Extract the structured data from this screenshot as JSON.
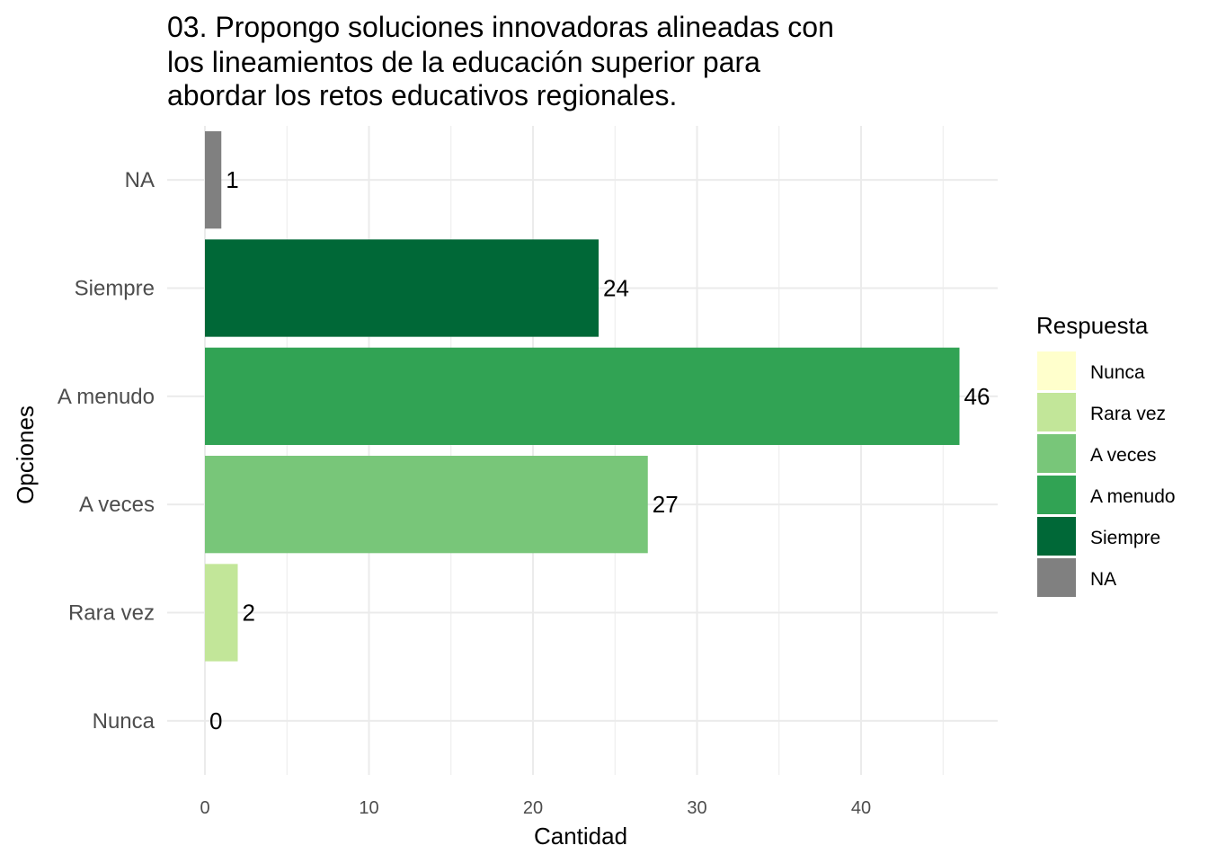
{
  "chart_data": {
    "type": "bar",
    "orientation": "horizontal",
    "title_lines": [
      "03. Propongo soluciones innovadoras alineadas con",
      "los lineamientos de la educación superior para",
      "abordar los retos educativos regionales."
    ],
    "xlabel": "Cantidad",
    "ylabel": "Opciones",
    "categories": [
      "Nunca",
      "Rara vez",
      "A veces",
      "A menudo",
      "Siempre",
      "NA"
    ],
    "values": [
      0,
      2,
      27,
      46,
      24,
      1
    ],
    "colors": [
      "#ffffcc",
      "#c2e699",
      "#78c679",
      "#31a354",
      "#006837",
      "#808080"
    ],
    "xlim": [
      0,
      48
    ],
    "x_ticks": [
      0,
      10,
      20,
      30,
      40
    ],
    "grid": true,
    "legend": {
      "title": "Respuesta",
      "position": "right",
      "entries": [
        "Nunca",
        "Rara vez",
        "A veces",
        "A menudo",
        "Siempre",
        "NA"
      ]
    }
  }
}
